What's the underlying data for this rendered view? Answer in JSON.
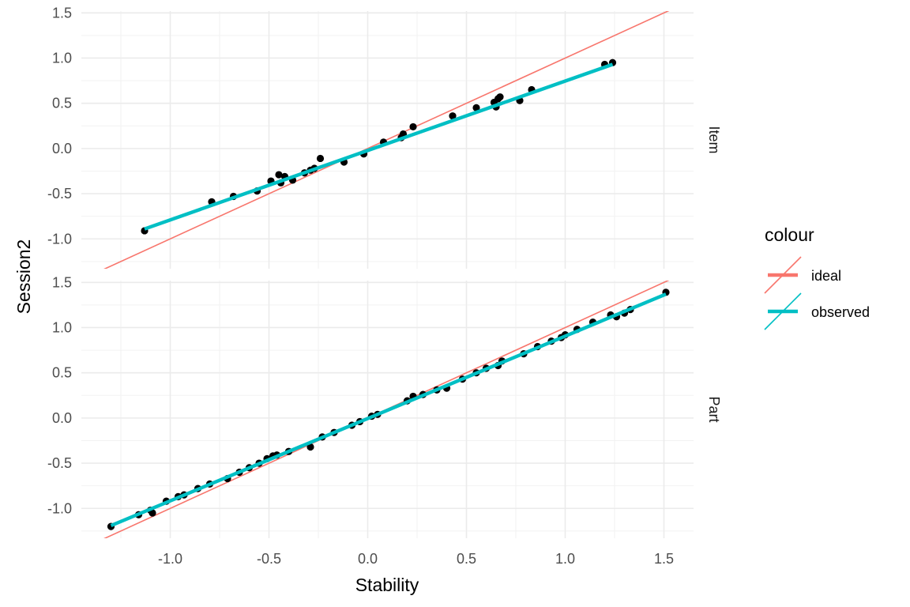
{
  "chart_data": {
    "type": "scatter",
    "xlabel": "Stability",
    "ylabel": "Session2",
    "xlim": [
      -1.45,
      1.65
    ],
    "ylim": [
      -1.33,
      1.52
    ],
    "x_ticks": [
      "-1.0",
      "-0.5",
      "0.0",
      "0.5",
      "1.0",
      "1.5"
    ],
    "x_tick_values": [
      -1.0,
      -0.5,
      0.0,
      0.5,
      1.0,
      1.5
    ],
    "y_ticks": [
      "-1.0",
      "-0.5",
      "0.0",
      "0.5",
      "1.0",
      "1.5"
    ],
    "y_tick_values": [
      -1.0,
      -0.5,
      0.0,
      0.5,
      1.0,
      1.5
    ],
    "grid": true,
    "legend": {
      "title": "colour",
      "position": "right",
      "entries": [
        {
          "label": "ideal",
          "color": "#F8766D"
        },
        {
          "label": "observed",
          "color": "#00BFC4"
        }
      ]
    },
    "facets": [
      {
        "label": "Item",
        "ideal": {
          "slope": 1,
          "intercept": 0
        },
        "observed": {
          "x": [
            -1.13,
            1.24
          ],
          "y": [
            -0.89,
            0.93
          ]
        },
        "points": {
          "x": [
            -1.13,
            -0.79,
            -0.68,
            -0.56,
            -0.49,
            -0.45,
            -0.44,
            -0.42,
            -0.38,
            -0.32,
            -0.29,
            -0.27,
            -0.24,
            -0.12,
            -0.02,
            0.08,
            0.17,
            0.18,
            0.23,
            0.43,
            0.55,
            0.64,
            0.65,
            0.66,
            0.67,
            0.77,
            0.83,
            1.2,
            1.24
          ],
          "y": [
            -0.91,
            -0.59,
            -0.53,
            -0.47,
            -0.36,
            -0.29,
            -0.38,
            -0.31,
            -0.35,
            -0.27,
            -0.24,
            -0.22,
            -0.11,
            -0.15,
            -0.06,
            0.07,
            0.12,
            0.16,
            0.24,
            0.36,
            0.45,
            0.51,
            0.46,
            0.55,
            0.57,
            0.53,
            0.65,
            0.93,
            0.95
          ]
        }
      },
      {
        "label": "Part",
        "ideal": {
          "slope": 1,
          "intercept": 0
        },
        "observed": {
          "x": [
            -1.3,
            1.51
          ],
          "y": [
            -1.19,
            1.37
          ]
        },
        "points": {
          "x": [
            -1.3,
            -1.16,
            -1.1,
            -1.09,
            -1.02,
            -0.96,
            -0.93,
            -0.86,
            -0.8,
            -0.71,
            -0.65,
            -0.6,
            -0.55,
            -0.51,
            -0.48,
            -0.46,
            -0.4,
            -0.29,
            -0.23,
            -0.17,
            -0.08,
            -0.04,
            0.02,
            0.05,
            0.2,
            0.23,
            0.28,
            0.35,
            0.4,
            0.48,
            0.55,
            0.6,
            0.66,
            0.68,
            0.79,
            0.86,
            0.93,
            0.98,
            1.0,
            1.06,
            1.14,
            1.23,
            1.26,
            1.3,
            1.33,
            1.51
          ],
          "y": [
            -1.2,
            -1.07,
            -1.02,
            -1.05,
            -0.92,
            -0.87,
            -0.85,
            -0.78,
            -0.73,
            -0.67,
            -0.6,
            -0.55,
            -0.5,
            -0.45,
            -0.42,
            -0.41,
            -0.37,
            -0.32,
            -0.21,
            -0.16,
            -0.08,
            -0.04,
            0.02,
            0.04,
            0.19,
            0.24,
            0.26,
            0.31,
            0.33,
            0.43,
            0.5,
            0.55,
            0.58,
            0.63,
            0.71,
            0.79,
            0.85,
            0.89,
            0.92,
            0.98,
            1.06,
            1.14,
            1.12,
            1.16,
            1.2,
            1.39
          ]
        }
      }
    ]
  }
}
